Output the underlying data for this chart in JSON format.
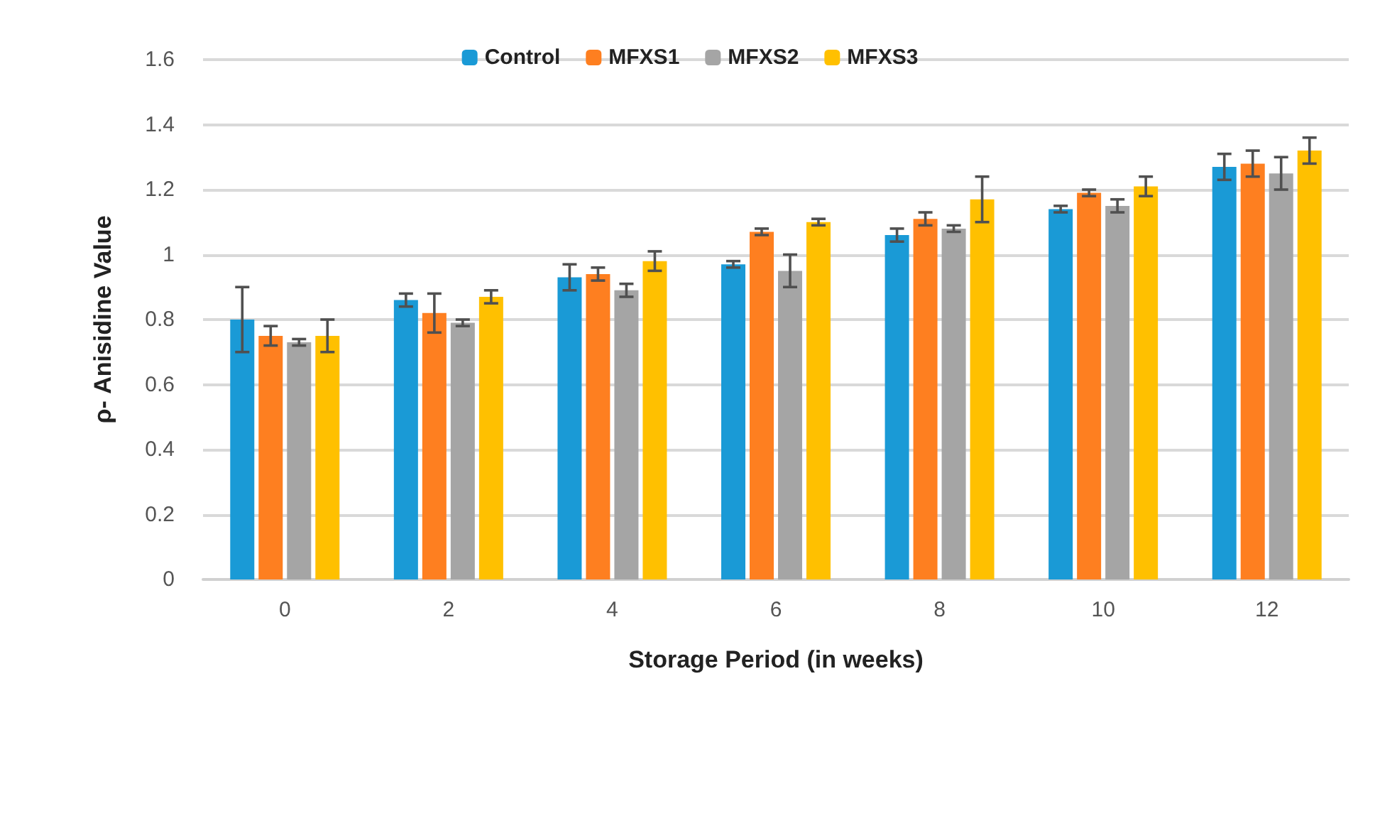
{
  "chart_data": {
    "type": "bar",
    "xlabel": "Storage Period (in weeks)",
    "ylabel": "ρ- Anisidine Value",
    "categories": [
      "0",
      "2",
      "4",
      "6",
      "8",
      "10",
      "12"
    ],
    "series": [
      {
        "name": "Control",
        "color": "#1a9ad6",
        "values": [
          0.8,
          0.86,
          0.93,
          0.97,
          1.06,
          1.14,
          1.27
        ],
        "errors": [
          0.1,
          0.02,
          0.04,
          0.01,
          0.02,
          0.01,
          0.04
        ]
      },
      {
        "name": "MFXS1",
        "color": "#fe7f20",
        "values": [
          0.75,
          0.82,
          0.94,
          1.07,
          1.11,
          1.19,
          1.28
        ],
        "errors": [
          0.03,
          0.06,
          0.02,
          0.01,
          0.02,
          0.01,
          0.04
        ]
      },
      {
        "name": "MFXS2",
        "color": "#a5a5a5",
        "values": [
          0.73,
          0.79,
          0.89,
          0.95,
          1.08,
          1.15,
          1.25
        ],
        "errors": [
          0.01,
          0.01,
          0.02,
          0.05,
          0.01,
          0.02,
          0.05
        ]
      },
      {
        "name": "MFXS3",
        "color": "#ffc000",
        "values": [
          0.75,
          0.87,
          0.98,
          1.1,
          1.17,
          1.21,
          1.32
        ],
        "errors": [
          0.05,
          0.02,
          0.03,
          0.01,
          0.07,
          0.03,
          0.04
        ]
      }
    ],
    "ylim": [
      0,
      1.6
    ],
    "yticks": [
      0,
      0.2,
      0.4,
      0.6,
      0.8,
      1,
      1.2,
      1.4,
      1.6
    ],
    "grid": "y",
    "legend": "top"
  }
}
